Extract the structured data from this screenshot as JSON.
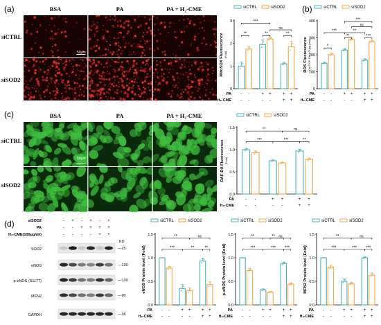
{
  "panels": {
    "a": "(a)",
    "b": "(b)",
    "c": "(c)",
    "d": "(d)"
  },
  "micro_a": {
    "columns": [
      "BSA",
      "PA",
      "PA + H₂-CME"
    ],
    "rows": [
      "siCTRL",
      "siSOD2"
    ],
    "scalebar": "50μm"
  },
  "micro_c": {
    "columns": [
      "BSA",
      "PA",
      "PA + H₂-CME"
    ],
    "rows": [
      "siCTRL",
      "siSOD2"
    ],
    "scalebar": "50μm"
  },
  "wb": {
    "header_rows": [
      {
        "label": "siSOD2",
        "signs": [
          "-",
          "+",
          "-",
          "+",
          "-",
          "+"
        ]
      },
      {
        "label": "PA",
        "signs": [
          "-",
          "-",
          "+",
          "+",
          "+",
          "+"
        ]
      },
      {
        "label": "H₂-CME(100μg/ml)",
        "signs": [
          "-",
          "-",
          "-",
          "-",
          "+",
          "+"
        ]
      }
    ],
    "kd_label": "KD",
    "bands": [
      {
        "label": "SOD2",
        "kd": "25"
      },
      {
        "label": "eNOS",
        "kd": "130"
      },
      {
        "label": "p-eNOS (S1177)",
        "kd": "130"
      },
      {
        "label": "MFN2",
        "kd": "90"
      },
      {
        "label": "GAPDH",
        "kd": "36"
      }
    ]
  },
  "colors": {
    "siCTRL": "#4bb3b8",
    "siSOD2": "#f5a64a",
    "red_bg": "#1a0303",
    "green_bg": "#0b2a0b"
  },
  "chart_data": [
    {
      "id": "mitosox",
      "type": "bar",
      "ylabel": "MitoSOX Fluorescence",
      "ylabel_unit": "(Fold)",
      "yticks": [
        "0",
        "1",
        "2",
        "3"
      ],
      "ylim": [
        0,
        3
      ],
      "legend": [
        "siCTRL",
        "siSOD2"
      ],
      "groups": 3,
      "series": [
        {
          "name": "siCTRL",
          "values": [
            1.0,
            1.95,
            1.1
          ],
          "errors": [
            0.18,
            0.2,
            0.06
          ]
        },
        {
          "name": "siSOD2",
          "values": [
            1.75,
            2.2,
            1.85
          ],
          "errors": [
            0.1,
            0.08,
            0.25
          ]
        }
      ],
      "cond_rows": [
        {
          "label": "PA",
          "signs": [
            "-",
            "-",
            "+",
            "+",
            "+",
            "+"
          ]
        },
        {
          "label": "H₂-CME",
          "signs": [
            "-",
            "-",
            "-",
            "-",
            "+",
            "+"
          ]
        }
      ],
      "sig": [
        {
          "text": "***",
          "from": 0,
          "to": 3,
          "level": 2.9
        },
        {
          "text": "ns",
          "from": 3,
          "to": 5,
          "level": 2.6
        },
        {
          "text": "**",
          "from": 0,
          "to": 1,
          "level": 2.35
        },
        {
          "text": "**",
          "from": 2,
          "to": 3,
          "level": 2.35
        },
        {
          "text": "**",
          "from": 4,
          "to": 5,
          "level": 2.35
        }
      ]
    },
    {
      "id": "ros",
      "type": "bar",
      "ylabel": "ROS Fluorescence",
      "ylabel_unit": "(by DCF-DA ·10⁴/μg prot)",
      "yticks": [
        "0",
        "100",
        "200",
        "300",
        "400"
      ],
      "ylim": [
        0,
        400
      ],
      "legend": [
        "siCTRL",
        "siSOD2"
      ],
      "groups": 3,
      "series": [
        {
          "name": "siCTRL",
          "values": [
            150,
            228,
            168
          ],
          "errors": [
            6,
            8,
            8
          ]
        },
        {
          "name": "siSOD2",
          "values": [
            200,
            290,
            278
          ],
          "errors": [
            10,
            8,
            8
          ]
        }
      ],
      "cond_rows": [
        {
          "label": "PA",
          "signs": [
            "-",
            "-",
            "+",
            "+",
            "+",
            "+"
          ]
        },
        {
          "label": "H₂-CME",
          "signs": [
            "-",
            "-",
            "-",
            "-",
            "+",
            "+"
          ]
        }
      ],
      "sig": [
        {
          "text": "***",
          "from": 2,
          "to": 5,
          "level": 395
        },
        {
          "text": "ns",
          "from": 3,
          "to": 5,
          "level": 365
        },
        {
          "text": "***",
          "from": 0,
          "to": 2,
          "level": 330
        },
        {
          "text": "**",
          "from": 2,
          "to": 4,
          "level": 330
        },
        {
          "text": "*",
          "from": 0,
          "to": 1,
          "level": 240
        },
        {
          "text": "**",
          "from": 2,
          "to": 3,
          "level": 300
        },
        {
          "text": "***",
          "from": 4,
          "to": 5,
          "level": 300
        }
      ]
    },
    {
      "id": "dafda",
      "type": "bar",
      "ylabel": "DAF-DA Fluorescence",
      "ylabel_unit": "(Fold)",
      "yticks": [
        "0.0",
        "0.5",
        "1.0",
        "1.5"
      ],
      "ylim": [
        0,
        1.5
      ],
      "legend": [
        "siCTRL",
        "siSOD2"
      ],
      "groups": 3,
      "series": [
        {
          "name": "siCTRL",
          "values": [
            1.0,
            0.75,
            0.97
          ],
          "errors": [
            0.03,
            0.02,
            0.04
          ]
        },
        {
          "name": "siSOD2",
          "values": [
            0.93,
            0.7,
            0.78
          ],
          "errors": [
            0.04,
            0.02,
            0.03
          ]
        }
      ],
      "cond_rows": [
        {
          "label": "PA",
          "signs": [
            "-",
            "-",
            "+",
            "+",
            "+",
            "+"
          ]
        },
        {
          "label": "H₂-CME",
          "signs": [
            "-",
            "-",
            "-",
            "-",
            "+",
            "+"
          ]
        }
      ],
      "sig": [
        {
          "text": "**",
          "from": 0,
          "to": 3,
          "level": 1.42
        },
        {
          "text": "ns",
          "from": 3,
          "to": 5,
          "level": 1.42
        },
        {
          "text": "***",
          "from": 0,
          "to": 2,
          "level": 1.18
        },
        {
          "text": "***",
          "from": 2,
          "to": 4,
          "level": 1.18
        },
        {
          "text": "**",
          "from": 4,
          "to": 5,
          "level": 1.18
        }
      ]
    },
    {
      "id": "enos",
      "type": "bar",
      "ylabel": "eNOS Protein level (Fold)",
      "ylabel_unit": "",
      "yticks": [
        "0.0",
        "0.5",
        "1.0",
        "1.5"
      ],
      "ylim": [
        0,
        1.5
      ],
      "legend": [
        "siCTRL",
        "siSOD2"
      ],
      "groups": 3,
      "series": [
        {
          "name": "siCTRL",
          "values": [
            1.0,
            0.35,
            0.93
          ],
          "errors": [
            0.0,
            0.08,
            0.06
          ]
        },
        {
          "name": "siSOD2",
          "values": [
            0.78,
            0.3,
            0.43
          ],
          "errors": [
            0.04,
            0.06,
            0.06
          ]
        }
      ],
      "cond_rows": [
        {
          "label": "PA",
          "signs": [
            "-",
            "-",
            "+",
            "+",
            "+",
            "+"
          ]
        },
        {
          "label": "H₂-CME",
          "signs": [
            "-",
            "-",
            "-",
            "-",
            "+",
            "+"
          ]
        }
      ],
      "sig": [
        {
          "text": "**",
          "from": 0,
          "to": 3,
          "level": 1.42
        },
        {
          "text": "ns",
          "from": 3,
          "to": 5,
          "level": 1.42
        },
        {
          "text": "***",
          "from": 0,
          "to": 2,
          "level": 1.18
        },
        {
          "text": "**",
          "from": 2,
          "to": 4,
          "level": 1.18
        },
        {
          "text": "**",
          "from": 4,
          "to": 5,
          "level": 1.18
        }
      ]
    },
    {
      "id": "peNOS",
      "type": "bar",
      "ylabel": "p-eNOS Protein level (Fold)",
      "ylabel_unit": "",
      "yticks": [
        "0.0",
        "0.5",
        "1.0",
        "1.5"
      ],
      "ylim": [
        0,
        1.5
      ],
      "legend": [
        "siCTRL",
        "siSOD2"
      ],
      "groups": 3,
      "series": [
        {
          "name": "siCTRL",
          "values": [
            1.0,
            0.32,
            0.88
          ],
          "errors": [
            0.0,
            0.02,
            0.03
          ]
        },
        {
          "name": "siSOD2",
          "values": [
            0.73,
            0.27,
            0.44
          ],
          "errors": [
            0.04,
            0.02,
            0.03
          ]
        }
      ],
      "cond_rows": [
        {
          "label": "PA",
          "signs": [
            "-",
            "-",
            "+",
            "+",
            "+",
            "+"
          ]
        },
        {
          "label": "H₂-CME",
          "signs": [
            "-",
            "-",
            "-",
            "-",
            "+",
            "+"
          ]
        }
      ],
      "sig": [
        {
          "text": "**",
          "from": 0,
          "to": 2,
          "level": 1.42
        },
        {
          "text": "**",
          "from": 2,
          "to": 4,
          "level": 1.42
        },
        {
          "text": "ns",
          "from": 3,
          "to": 5,
          "level": 1.42
        },
        {
          "text": "***",
          "from": 0,
          "to": 2,
          "level": 1.18
        },
        {
          "text": "***",
          "from": 2,
          "to": 4,
          "level": 1.18
        },
        {
          "text": "***",
          "from": 4,
          "to": 5,
          "level": 1.18
        }
      ]
    },
    {
      "id": "mfn2",
      "type": "bar",
      "ylabel": "MFN2 Protein level (Fold)",
      "ylabel_unit": "",
      "yticks": [
        "0.0",
        "0.5",
        "1.0",
        "1.5"
      ],
      "ylim": [
        0,
        1.5
      ],
      "legend": [
        "siCTRL",
        "siSOD2"
      ],
      "groups": 3,
      "series": [
        {
          "name": "siCTRL",
          "values": [
            1.0,
            0.5,
            1.0
          ],
          "errors": [
            0.0,
            0.05,
            0.02
          ]
        },
        {
          "name": "siSOD2",
          "values": [
            0.8,
            0.45,
            0.63
          ],
          "errors": [
            0.04,
            0.03,
            0.05
          ]
        }
      ],
      "cond_rows": [
        {
          "label": "PA",
          "signs": [
            "-",
            "-",
            "+",
            "+",
            "+",
            "+"
          ]
        },
        {
          "label": "H₂-CME",
          "signs": [
            "-",
            "-",
            "-",
            "-",
            "+",
            "+"
          ]
        }
      ],
      "sig": [
        {
          "text": "**",
          "from": 0,
          "to": 3,
          "level": 1.42
        },
        {
          "text": "ns",
          "from": 3,
          "to": 5,
          "level": 1.42
        },
        {
          "text": "***",
          "from": 0,
          "to": 2,
          "level": 1.18
        },
        {
          "text": "***",
          "from": 2,
          "to": 4,
          "level": 1.18
        },
        {
          "text": "***",
          "from": 4,
          "to": 5,
          "level": 1.18
        }
      ]
    }
  ]
}
